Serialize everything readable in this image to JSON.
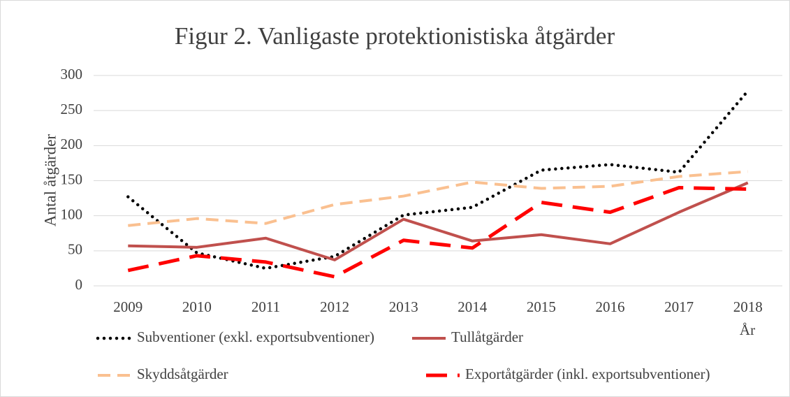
{
  "chart_data": {
    "type": "line",
    "title": "Figur 2. Vanligaste protektionistiska åtgärder",
    "y_label": "Antal åtgärder",
    "x_label": "År",
    "categories": [
      "2009",
      "2010",
      "2011",
      "2012",
      "2013",
      "2014",
      "2015",
      "2016",
      "2017",
      "2018"
    ],
    "series": [
      {
        "name": "Subventioner (exkl. exportsubventioner)",
        "color": "#000000",
        "values": [
          127,
          47,
          25,
          42,
          101,
          112,
          165,
          173,
          162,
          278
        ]
      },
      {
        "name": "Tullåtgärder",
        "color": "#c0504d",
        "values": [
          57,
          55,
          68,
          37,
          95,
          64,
          73,
          60,
          105,
          147
        ]
      },
      {
        "name": "Skyddsåtgärder",
        "color": "#fac090",
        "values": [
          86,
          96,
          89,
          116,
          128,
          148,
          139,
          142,
          156,
          163
        ]
      },
      {
        "name": "Exportåtgärder (inkl. exportsubventioner)",
        "color": "#ff0000",
        "values": [
          22,
          43,
          34,
          13,
          65,
          54,
          119,
          105,
          140,
          138
        ]
      }
    ],
    "ylim": [
      0,
      300
    ],
    "yticks": [
      0,
      50,
      100,
      150,
      200,
      250,
      300
    ],
    "grid": true
  }
}
